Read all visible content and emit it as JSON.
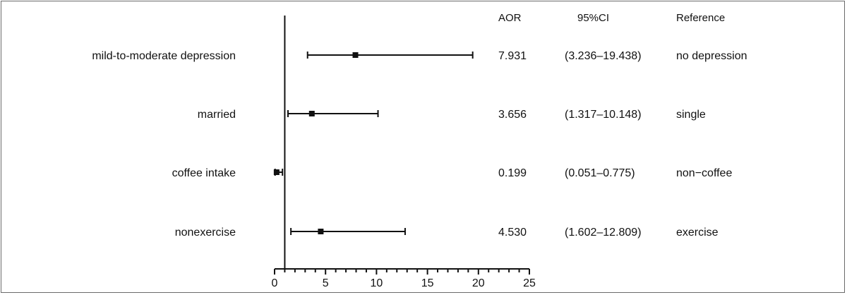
{
  "chart_data": {
    "type": "forest",
    "headers": {
      "aor": "AOR",
      "ci": "95%CI",
      "reference": "Reference"
    },
    "rows": [
      {
        "label": "mild-to-moderate depression",
        "aor": 7.931,
        "ci_low": 3.236,
        "ci_high": 19.438,
        "aor_text": "7.931",
        "ci_text": "(3.236–19.438)",
        "reference": "no depression"
      },
      {
        "label": "married",
        "aor": 3.656,
        "ci_low": 1.317,
        "ci_high": 10.148,
        "aor_text": "3.656",
        "ci_text": "(1.317–10.148)",
        "reference": "single"
      },
      {
        "label": "coffee intake",
        "aor": 0.199,
        "ci_low": 0.051,
        "ci_high": 0.775,
        "aor_text": "0.199",
        "ci_text": "(0.051–0.775)",
        "reference": "non−coffee"
      },
      {
        "label": "nonexercise",
        "aor": 4.53,
        "ci_low": 1.602,
        "ci_high": 12.809,
        "aor_text": "4.530",
        "ci_text": "(1.602–12.809)",
        "reference": "exercise"
      }
    ],
    "x_axis": {
      "min": 0,
      "max": 25,
      "major_ticks": [
        0,
        5,
        10,
        15,
        20,
        25
      ],
      "tick_labels": [
        "0",
        "5",
        "10",
        "15",
        "20",
        "25"
      ],
      "minor_step": 1
    },
    "reference_line": 1,
    "grid": false
  }
}
